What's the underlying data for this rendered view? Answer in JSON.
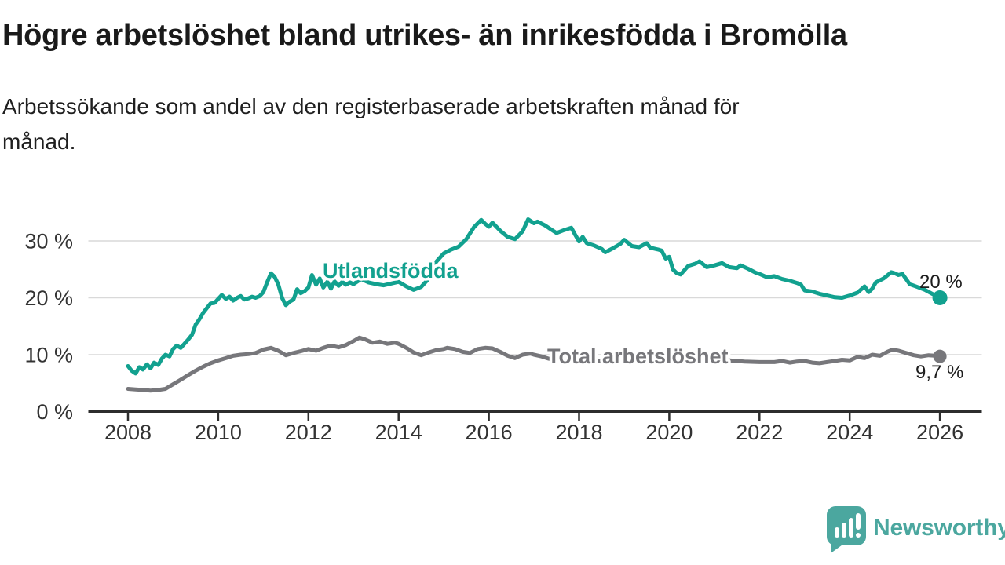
{
  "header": {
    "title": "Högre arbetslöshet bland utrikes- än inrikesfödda i Bromölla",
    "subtitle_line1": "Arbetssökande som andel av den registerbaserade arbetskraften månad för",
    "subtitle_line2": "månad."
  },
  "branding": {
    "name": "Newsworthy",
    "color": "#4BA79F"
  },
  "chart_data": {
    "type": "line",
    "title": "Högre arbetslöshet bland utrikes- än inrikesfödda i Bromölla",
    "subtitle": "Arbetssökande som andel av den registerbaserade arbetskraften månad för månad.",
    "grid": "horizontal",
    "legend": "inline-labels",
    "x_axis": {
      "ticks": [
        2008,
        2010,
        2012,
        2014,
        2016,
        2018,
        2020,
        2022,
        2024,
        2026
      ],
      "labels": [
        "2008",
        "2010",
        "2012",
        "2014",
        "2016",
        "2018",
        "2020",
        "2022",
        "2024",
        "2026"
      ],
      "range": [
        2007.1,
        2027.4
      ]
    },
    "y_axis": {
      "values": [
        0,
        10,
        20,
        30
      ],
      "labels": [
        "0 %",
        "10 %",
        "20 %",
        "30 %"
      ],
      "unit": "%",
      "range": [
        0,
        36.5
      ]
    },
    "series": [
      {
        "name": "Utlandsfödda",
        "color": "#12A18F",
        "end_label": "20 %",
        "end_value": 20.0,
        "points": [
          [
            2008.0,
            8.0
          ],
          [
            2008.08,
            7.2
          ],
          [
            2008.17,
            6.7
          ],
          [
            2008.25,
            7.8
          ],
          [
            2008.33,
            7.4
          ],
          [
            2008.42,
            8.3
          ],
          [
            2008.5,
            7.6
          ],
          [
            2008.58,
            8.6
          ],
          [
            2008.67,
            8.2
          ],
          [
            2008.75,
            9.3
          ],
          [
            2008.83,
            10.0
          ],
          [
            2008.92,
            9.7
          ],
          [
            2009.0,
            11.0
          ],
          [
            2009.08,
            11.6
          ],
          [
            2009.17,
            11.2
          ],
          [
            2009.33,
            12.6
          ],
          [
            2009.42,
            13.5
          ],
          [
            2009.5,
            15.3
          ],
          [
            2009.58,
            16.2
          ],
          [
            2009.67,
            17.4
          ],
          [
            2009.75,
            18.2
          ],
          [
            2009.83,
            19.0
          ],
          [
            2009.92,
            19.1
          ],
          [
            2010.0,
            19.8
          ],
          [
            2010.08,
            20.5
          ],
          [
            2010.17,
            19.8
          ],
          [
            2010.25,
            20.2
          ],
          [
            2010.33,
            19.5
          ],
          [
            2010.42,
            20.0
          ],
          [
            2010.5,
            20.3
          ],
          [
            2010.58,
            19.7
          ],
          [
            2010.67,
            19.9
          ],
          [
            2010.75,
            20.2
          ],
          [
            2010.83,
            20.0
          ],
          [
            2010.92,
            20.3
          ],
          [
            2011.0,
            21.0
          ],
          [
            2011.08,
            22.6
          ],
          [
            2011.17,
            24.3
          ],
          [
            2011.25,
            23.7
          ],
          [
            2011.33,
            22.4
          ],
          [
            2011.42,
            19.9
          ],
          [
            2011.5,
            18.7
          ],
          [
            2011.58,
            19.3
          ],
          [
            2011.67,
            19.7
          ],
          [
            2011.75,
            21.5
          ],
          [
            2011.83,
            20.8
          ],
          [
            2011.92,
            21.2
          ],
          [
            2012.0,
            21.8
          ],
          [
            2012.08,
            24.0
          ],
          [
            2012.17,
            22.3
          ],
          [
            2012.25,
            23.4
          ],
          [
            2012.33,
            21.8
          ],
          [
            2012.42,
            22.8
          ],
          [
            2012.5,
            21.6
          ],
          [
            2012.58,
            22.9
          ],
          [
            2012.67,
            22.1
          ],
          [
            2012.75,
            22.8
          ],
          [
            2012.83,
            22.3
          ],
          [
            2012.92,
            22.7
          ],
          [
            2013.0,
            22.4
          ],
          [
            2013.17,
            23.3
          ],
          [
            2013.33,
            22.7
          ],
          [
            2013.5,
            22.4
          ],
          [
            2013.67,
            22.2
          ],
          [
            2013.83,
            22.5
          ],
          [
            2014.0,
            22.8
          ],
          [
            2014.17,
            22.0
          ],
          [
            2014.33,
            21.4
          ],
          [
            2014.5,
            21.9
          ],
          [
            2014.67,
            23.4
          ],
          [
            2014.83,
            26.3
          ],
          [
            2015.0,
            27.8
          ],
          [
            2015.17,
            28.5
          ],
          [
            2015.33,
            29.0
          ],
          [
            2015.5,
            30.3
          ],
          [
            2015.67,
            32.4
          ],
          [
            2015.83,
            33.7
          ],
          [
            2015.92,
            33.0
          ],
          [
            2016.0,
            32.5
          ],
          [
            2016.08,
            33.2
          ],
          [
            2016.25,
            31.8
          ],
          [
            2016.42,
            30.7
          ],
          [
            2016.58,
            30.3
          ],
          [
            2016.75,
            31.7
          ],
          [
            2016.87,
            33.8
          ],
          [
            2017.0,
            33.1
          ],
          [
            2017.08,
            33.4
          ],
          [
            2017.25,
            32.7
          ],
          [
            2017.42,
            31.8
          ],
          [
            2017.5,
            31.4
          ],
          [
            2017.67,
            31.9
          ],
          [
            2017.83,
            32.3
          ],
          [
            2017.92,
            31.0
          ],
          [
            2018.0,
            29.9
          ],
          [
            2018.08,
            30.7
          ],
          [
            2018.17,
            29.6
          ],
          [
            2018.33,
            29.2
          ],
          [
            2018.5,
            28.6
          ],
          [
            2018.58,
            28.0
          ],
          [
            2018.75,
            28.7
          ],
          [
            2018.92,
            29.5
          ],
          [
            2019.0,
            30.2
          ],
          [
            2019.17,
            29.1
          ],
          [
            2019.33,
            28.9
          ],
          [
            2019.5,
            29.6
          ],
          [
            2019.58,
            28.8
          ],
          [
            2019.75,
            28.5
          ],
          [
            2019.83,
            28.3
          ],
          [
            2019.92,
            26.9
          ],
          [
            2020.0,
            27.2
          ],
          [
            2020.08,
            25.0
          ],
          [
            2020.17,
            24.3
          ],
          [
            2020.25,
            24.1
          ],
          [
            2020.42,
            25.6
          ],
          [
            2020.58,
            26.0
          ],
          [
            2020.67,
            26.4
          ],
          [
            2020.83,
            25.4
          ],
          [
            2021.0,
            25.7
          ],
          [
            2021.17,
            26.1
          ],
          [
            2021.33,
            25.4
          ],
          [
            2021.5,
            25.2
          ],
          [
            2021.58,
            25.7
          ],
          [
            2021.75,
            25.1
          ],
          [
            2021.92,
            24.4
          ],
          [
            2022.0,
            24.2
          ],
          [
            2022.17,
            23.6
          ],
          [
            2022.33,
            23.8
          ],
          [
            2022.5,
            23.3
          ],
          [
            2022.67,
            23.0
          ],
          [
            2022.83,
            22.6
          ],
          [
            2022.92,
            22.3
          ],
          [
            2023.0,
            21.3
          ],
          [
            2023.17,
            21.1
          ],
          [
            2023.33,
            20.7
          ],
          [
            2023.5,
            20.4
          ],
          [
            2023.67,
            20.1
          ],
          [
            2023.83,
            20.0
          ],
          [
            2024.0,
            20.4
          ],
          [
            2024.17,
            20.9
          ],
          [
            2024.33,
            22.0
          ],
          [
            2024.42,
            21.0
          ],
          [
            2024.5,
            21.6
          ],
          [
            2024.58,
            22.7
          ],
          [
            2024.75,
            23.4
          ],
          [
            2024.92,
            24.5
          ],
          [
            2025.0,
            24.3
          ],
          [
            2025.08,
            24.0
          ],
          [
            2025.17,
            24.2
          ],
          [
            2025.33,
            22.4
          ],
          [
            2025.5,
            21.9
          ],
          [
            2025.67,
            21.4
          ],
          [
            2025.83,
            20.7
          ],
          [
            2026.0,
            20.0
          ]
        ]
      },
      {
        "name": "Total arbetslöshet",
        "color": "#77777B",
        "end_label": "9,7 %",
        "end_value": 9.7,
        "points": [
          [
            2008.0,
            4.0
          ],
          [
            2008.17,
            3.9
          ],
          [
            2008.33,
            3.8
          ],
          [
            2008.5,
            3.7
          ],
          [
            2008.67,
            3.8
          ],
          [
            2008.83,
            4.0
          ],
          [
            2009.0,
            4.8
          ],
          [
            2009.17,
            5.6
          ],
          [
            2009.33,
            6.4
          ],
          [
            2009.5,
            7.2
          ],
          [
            2009.67,
            7.9
          ],
          [
            2009.83,
            8.5
          ],
          [
            2010.0,
            9.0
          ],
          [
            2010.17,
            9.4
          ],
          [
            2010.33,
            9.8
          ],
          [
            2010.5,
            10.0
          ],
          [
            2010.67,
            10.1
          ],
          [
            2010.83,
            10.3
          ],
          [
            2011.0,
            10.9
          ],
          [
            2011.17,
            11.2
          ],
          [
            2011.33,
            10.7
          ],
          [
            2011.5,
            9.9
          ],
          [
            2011.67,
            10.3
          ],
          [
            2011.83,
            10.6
          ],
          [
            2012.0,
            11.0
          ],
          [
            2012.17,
            10.7
          ],
          [
            2012.33,
            11.2
          ],
          [
            2012.5,
            11.6
          ],
          [
            2012.67,
            11.3
          ],
          [
            2012.83,
            11.7
          ],
          [
            2013.0,
            12.4
          ],
          [
            2013.13,
            13.0
          ],
          [
            2013.25,
            12.7
          ],
          [
            2013.42,
            12.1
          ],
          [
            2013.58,
            12.3
          ],
          [
            2013.75,
            11.9
          ],
          [
            2013.92,
            12.1
          ],
          [
            2014.0,
            11.9
          ],
          [
            2014.17,
            11.2
          ],
          [
            2014.33,
            10.4
          ],
          [
            2014.5,
            9.9
          ],
          [
            2014.67,
            10.4
          ],
          [
            2014.83,
            10.8
          ],
          [
            2015.0,
            11.0
          ],
          [
            2015.08,
            11.2
          ],
          [
            2015.25,
            11.0
          ],
          [
            2015.42,
            10.5
          ],
          [
            2015.58,
            10.3
          ],
          [
            2015.75,
            11.0
          ],
          [
            2015.92,
            11.2
          ],
          [
            2016.08,
            11.1
          ],
          [
            2016.25,
            10.5
          ],
          [
            2016.42,
            9.8
          ],
          [
            2016.58,
            9.4
          ],
          [
            2016.75,
            10.0
          ],
          [
            2016.92,
            10.2
          ],
          [
            2017.0,
            10.0
          ],
          [
            2017.17,
            9.7
          ],
          [
            2017.33,
            9.3
          ],
          [
            2017.5,
            9.0
          ],
          [
            2017.75,
            8.7
          ],
          [
            2018.0,
            9.1
          ],
          [
            2018.33,
            9.0
          ],
          [
            2018.67,
            8.9
          ],
          [
            2019.0,
            8.9
          ],
          [
            2019.33,
            8.8
          ],
          [
            2019.67,
            8.9
          ],
          [
            2020.0,
            9.2
          ],
          [
            2020.25,
            9.8
          ],
          [
            2020.5,
            9.7
          ],
          [
            2020.75,
            9.5
          ],
          [
            2021.0,
            9.3
          ],
          [
            2021.33,
            9.0
          ],
          [
            2021.67,
            8.8
          ],
          [
            2022.0,
            8.7
          ],
          [
            2022.33,
            8.7
          ],
          [
            2022.5,
            8.9
          ],
          [
            2022.67,
            8.6
          ],
          [
            2022.83,
            8.8
          ],
          [
            2023.0,
            8.9
          ],
          [
            2023.17,
            8.6
          ],
          [
            2023.33,
            8.5
          ],
          [
            2023.5,
            8.7
          ],
          [
            2023.67,
            8.9
          ],
          [
            2023.83,
            9.1
          ],
          [
            2024.0,
            9.0
          ],
          [
            2024.17,
            9.6
          ],
          [
            2024.33,
            9.4
          ],
          [
            2024.5,
            10.0
          ],
          [
            2024.67,
            9.8
          ],
          [
            2024.83,
            10.5
          ],
          [
            2024.95,
            10.9
          ],
          [
            2025.08,
            10.7
          ],
          [
            2025.25,
            10.3
          ],
          [
            2025.42,
            9.9
          ],
          [
            2025.58,
            9.7
          ],
          [
            2025.75,
            9.9
          ],
          [
            2025.92,
            9.8
          ],
          [
            2026.0,
            9.7
          ]
        ]
      }
    ]
  }
}
